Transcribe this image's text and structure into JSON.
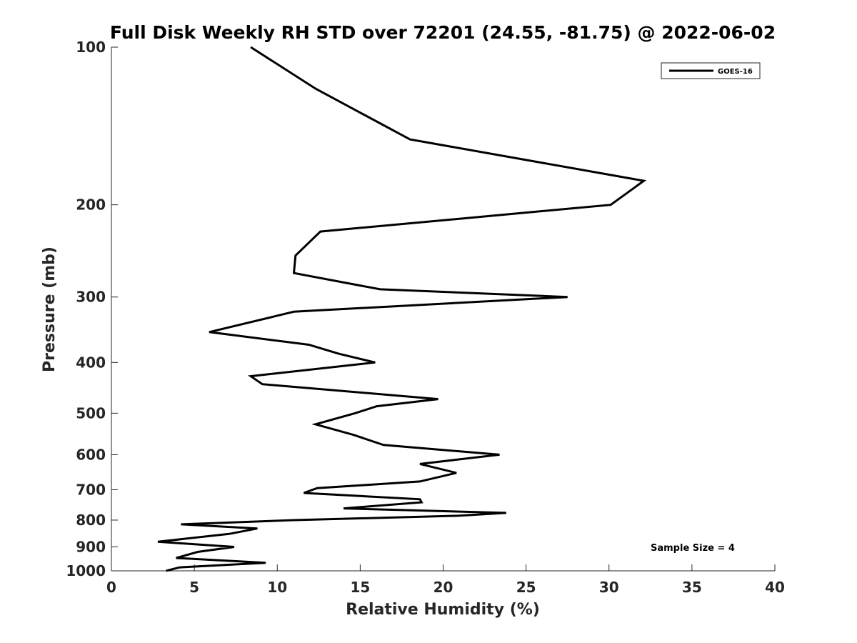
{
  "chart_data": {
    "type": "line",
    "title": "Full Disk Weekly RH STD over 72201 (24.55, -81.75) @ 2022-06-02",
    "xlabel": "Relative Humidity (%)",
    "ylabel": "Pressure (mb)",
    "xlim": [
      0,
      40
    ],
    "ylim": [
      100,
      1000
    ],
    "yscale": "log",
    "y_reversed": true,
    "grid": false,
    "x_ticks": [
      "0",
      "5",
      "10",
      "15",
      "20",
      "25",
      "30",
      "35",
      "40"
    ],
    "y_ticks": [
      "100",
      "200",
      "300",
      "400",
      "500",
      "600",
      "700",
      "800",
      "900",
      "1000"
    ],
    "legend": {
      "position": "top-right",
      "entries": [
        "GOES-16"
      ]
    },
    "annotation": "Sample Size = 4",
    "series": [
      {
        "name": "GOES-16",
        "color": "#000000",
        "x": [
          8.4,
          12.3,
          18.0,
          32.1,
          30.1,
          12.6,
          11.1,
          11.0,
          16.2,
          27.5,
          11.0,
          5.9,
          11.9,
          13.7,
          15.9,
          8.4,
          9.1,
          19.7,
          16.0,
          14.7,
          12.3,
          14.6,
          16.4,
          23.4,
          18.6,
          20.8,
          18.6,
          12.4,
          11.6,
          18.6,
          18.7,
          14.0,
          23.8,
          20.9,
          11.0,
          4.2,
          8.8,
          7.1,
          2.8,
          7.4,
          5.2,
          3.9,
          9.3,
          4.1,
          3.3
        ],
        "y": [
          100,
          120,
          150,
          180,
          200,
          225,
          250,
          270,
          290,
          300,
          320,
          350,
          370,
          385,
          400,
          425,
          440,
          470,
          485,
          500,
          525,
          550,
          575,
          600,
          625,
          650,
          675,
          695,
          710,
          730,
          740,
          760,
          775,
          785,
          800,
          815,
          830,
          850,
          880,
          900,
          920,
          945,
          965,
          985,
          1000
        ]
      }
    ]
  }
}
